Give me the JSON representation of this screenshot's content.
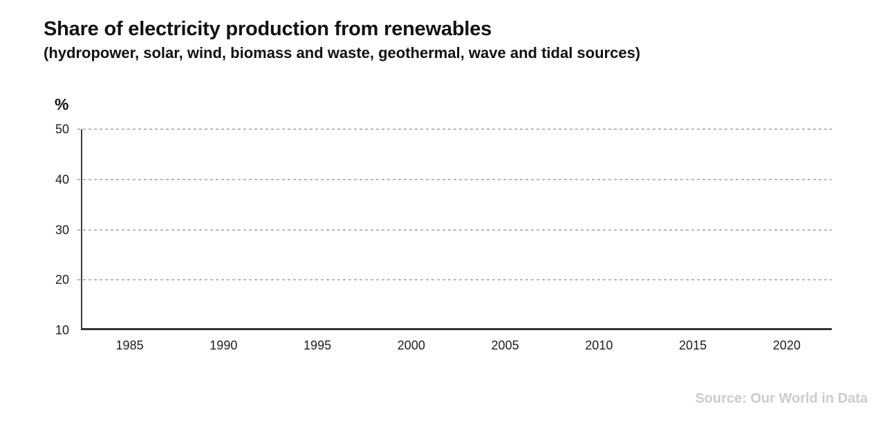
{
  "title": "Share of electricity production from renewables",
  "subtitle": "(hydropower, solar, wind, biomass and waste, geothermal, wave and tidal sources)",
  "source": "Source: Our World in Data",
  "chart_data": {
    "type": "line",
    "title": "Share of electricity production from renewables",
    "subtitle": "(hydropower, solar, wind, biomass and waste, geothermal, wave and tidal sources)",
    "xlabel": "",
    "ylabel": "%",
    "x_ticks": [
      1985,
      1990,
      1995,
      2000,
      2005,
      2010,
      2015,
      2020
    ],
    "y_ticks": [
      10,
      20,
      30,
      40,
      50
    ],
    "xlim": [
      1982.4,
      2022.4
    ],
    "ylim": [
      10,
      50
    ],
    "grid": "horizontal-dashed",
    "legend": "none",
    "series": []
  }
}
